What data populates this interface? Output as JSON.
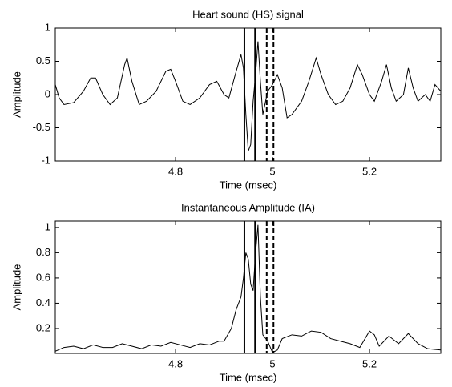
{
  "chart_data": [
    {
      "type": "line",
      "title": "Heart sound (HS) signal",
      "xlabel": "Time (msec)",
      "ylabel": "Amplitude",
      "color": "#000000",
      "xlim": [
        4.552,
        5.347
      ],
      "xticks": [
        4.8,
        5,
        5.2
      ],
      "ylim": [
        -1,
        1
      ],
      "yticks": [
        -1,
        -0.5,
        0,
        0.5,
        1
      ],
      "x": [
        4.552,
        4.56,
        4.57,
        4.59,
        4.61,
        4.625,
        4.635,
        4.65,
        4.665,
        4.68,
        4.695,
        4.7,
        4.71,
        4.725,
        4.74,
        4.76,
        4.78,
        4.79,
        4.8,
        4.815,
        4.83,
        4.85,
        4.87,
        4.885,
        4.9,
        4.91,
        4.925,
        4.935,
        4.94,
        4.945,
        4.95,
        4.955,
        4.96,
        4.965,
        4.97,
        4.975,
        4.98,
        4.99,
        5.0,
        5.01,
        5.02,
        5.03,
        5.04,
        5.06,
        5.075,
        5.09,
        5.1,
        5.115,
        5.13,
        5.145,
        5.16,
        5.175,
        5.185,
        5.2,
        5.21,
        5.225,
        5.235,
        5.245,
        5.255,
        5.27,
        5.28,
        5.29,
        5.3,
        5.315,
        5.325,
        5.335,
        5.347
      ],
      "values": [
        0.15,
        -0.05,
        -0.15,
        -0.12,
        0.05,
        0.25,
        0.25,
        0.0,
        -0.15,
        -0.05,
        0.45,
        0.55,
        0.2,
        -0.15,
        -0.1,
        0.05,
        0.35,
        0.38,
        0.2,
        -0.1,
        -0.15,
        -0.05,
        0.15,
        0.2,
        0.0,
        -0.05,
        0.35,
        0.6,
        0.4,
        -0.3,
        -0.85,
        -0.75,
        -0.1,
        0.3,
        0.8,
        0.2,
        -0.3,
        0.05,
        0.15,
        0.3,
        0.1,
        -0.35,
        -0.3,
        -0.1,
        0.2,
        0.55,
        0.3,
        0.0,
        -0.15,
        -0.1,
        0.1,
        0.45,
        0.3,
        0.0,
        -0.1,
        0.2,
        0.45,
        0.1,
        -0.1,
        0.0,
        0.4,
        0.1,
        -0.1,
        0.0,
        -0.1,
        0.15,
        0.05
      ],
      "vlines": [
        {
          "x": 4.942,
          "style": "solid"
        },
        {
          "x": 4.964,
          "style": "solid"
        },
        {
          "x": 4.988,
          "style": "dashed"
        },
        {
          "x": 5.002,
          "style": "dashed"
        }
      ]
    },
    {
      "type": "line",
      "title": "Instantaneous Amplitude (IA)",
      "xlabel": "Time (msec)",
      "ylabel": "Amplitude",
      "color": "#000000",
      "xlim": [
        4.552,
        5.347
      ],
      "xticks": [
        4.8,
        5,
        5.2
      ],
      "ylim": [
        0.003,
        1.05
      ],
      "yticks": [
        0.2,
        0.4,
        0.6,
        0.8,
        1
      ],
      "x": [
        4.552,
        4.57,
        4.59,
        4.61,
        4.63,
        4.65,
        4.67,
        4.69,
        4.71,
        4.73,
        4.75,
        4.77,
        4.79,
        4.81,
        4.83,
        4.85,
        4.87,
        4.89,
        4.9,
        4.915,
        4.925,
        4.935,
        4.94,
        4.945,
        4.95,
        4.955,
        4.96,
        4.965,
        4.97,
        4.975,
        4.98,
        4.99,
        5.0,
        5.01,
        5.02,
        5.04,
        5.06,
        5.08,
        5.1,
        5.12,
        5.14,
        5.16,
        5.18,
        5.2,
        5.21,
        5.22,
        5.24,
        5.26,
        5.28,
        5.3,
        5.32,
        5.347
      ],
      "values": [
        0.02,
        0.05,
        0.06,
        0.04,
        0.07,
        0.05,
        0.05,
        0.08,
        0.06,
        0.04,
        0.07,
        0.06,
        0.09,
        0.07,
        0.05,
        0.08,
        0.07,
        0.1,
        0.1,
        0.2,
        0.35,
        0.45,
        0.6,
        0.8,
        0.75,
        0.55,
        0.5,
        0.8,
        1.02,
        0.45,
        0.15,
        0.1,
        0.01,
        0.03,
        0.12,
        0.15,
        0.14,
        0.18,
        0.17,
        0.12,
        0.1,
        0.08,
        0.05,
        0.18,
        0.15,
        0.06,
        0.14,
        0.08,
        0.16,
        0.08,
        0.04,
        0.03
      ],
      "vlines": [
        {
          "x": 4.942,
          "style": "solid"
        },
        {
          "x": 4.964,
          "style": "solid"
        },
        {
          "x": 4.988,
          "style": "dashed"
        },
        {
          "x": 5.002,
          "style": "dashed"
        }
      ]
    }
  ]
}
